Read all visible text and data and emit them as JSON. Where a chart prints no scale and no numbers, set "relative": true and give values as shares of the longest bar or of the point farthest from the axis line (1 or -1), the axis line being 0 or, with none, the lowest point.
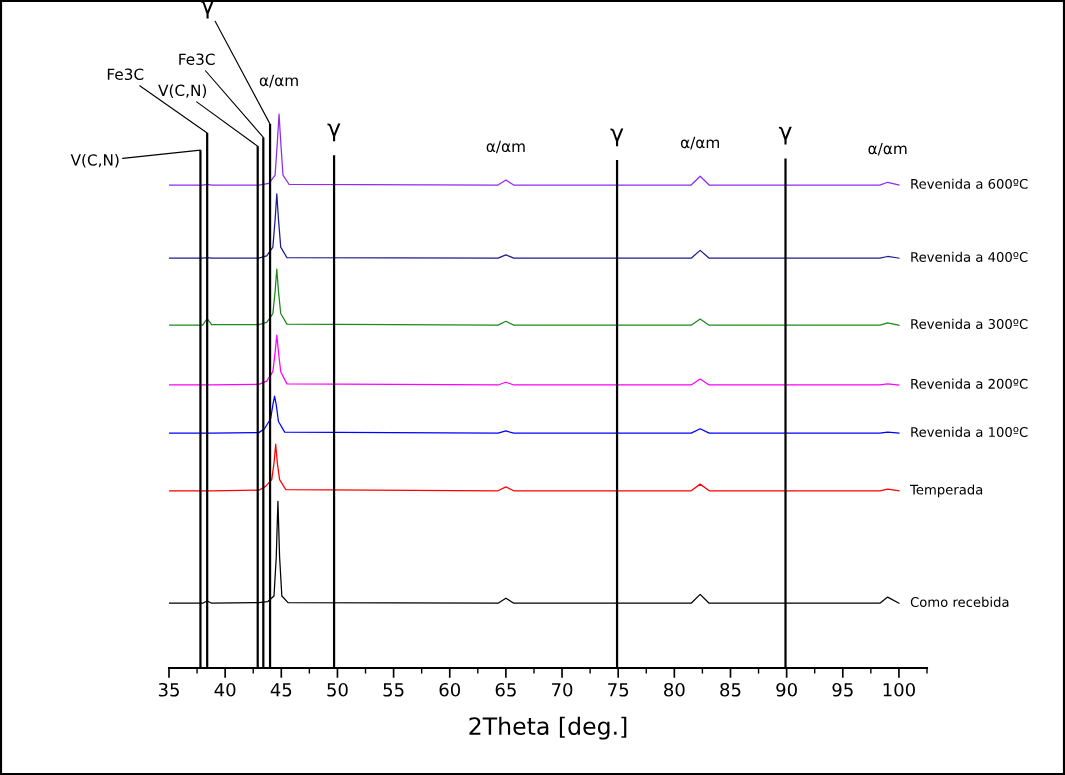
{
  "chart_data": {
    "type": "line",
    "relative": true,
    "xlabel": "2Theta [deg.]",
    "xlim": [
      35,
      102.5
    ],
    "xticks": [
      35,
      40,
      45,
      50,
      55,
      60,
      65,
      70,
      75,
      80,
      85,
      90,
      95,
      100
    ],
    "grid": false,
    "legend": false,
    "marker": "none",
    "line_style": "solid",
    "series": [
      {
        "name": "Como recebida",
        "color": "#000000",
        "x": [
          35,
          38.0,
          38.4,
          38.8,
          43.0,
          43.8,
          44.35,
          44.55,
          44.7,
          44.85,
          45.05,
          45.6,
          64.3,
          65.0,
          65.7,
          81.5,
          82.3,
          83.1,
          98.3,
          99.0,
          100
        ],
        "values": [
          0.117,
          0.117,
          0.121,
          0.117,
          0.118,
          0.12,
          0.13,
          0.2,
          0.301,
          0.2,
          0.13,
          0.118,
          0.117,
          0.126,
          0.117,
          0.117,
          0.133,
          0.117,
          0.117,
          0.128,
          0.117
        ]
      },
      {
        "name": "Temperada",
        "color": "#ff0000",
        "x": [
          35,
          38.0,
          38.4,
          38.8,
          43.0,
          43.6,
          44.15,
          44.35,
          44.5,
          44.65,
          44.85,
          45.4,
          64.3,
          65.0,
          65.7,
          81.5,
          82.3,
          83.1,
          98.3,
          99.0,
          100
        ],
        "values": [
          0.32,
          0.32,
          0.32,
          0.32,
          0.321,
          0.328,
          0.34,
          0.37,
          0.404,
          0.37,
          0.34,
          0.322,
          0.32,
          0.327,
          0.32,
          0.32,
          0.332,
          0.32,
          0.32,
          0.323,
          0.32
        ]
      },
      {
        "name": "Revenida a 100ºC",
        "color": "#0000ff",
        "x": [
          35,
          38.0,
          38.4,
          38.8,
          43.0,
          43.5,
          44.05,
          44.25,
          44.4,
          44.55,
          44.75,
          45.3,
          64.3,
          65.0,
          65.7,
          81.5,
          82.3,
          83.1,
          98.3,
          99.0,
          100
        ],
        "values": [
          0.424,
          0.424,
          0.424,
          0.424,
          0.425,
          0.432,
          0.45,
          0.475,
          0.491,
          0.475,
          0.445,
          0.426,
          0.424,
          0.428,
          0.424,
          0.424,
          0.432,
          0.424,
          0.424,
          0.426,
          0.424
        ]
      },
      {
        "name": "Revenida a 200ºC",
        "color": "#ff00ff",
        "x": [
          35,
          38.0,
          38.4,
          38.8,
          43.0,
          43.7,
          44.25,
          44.45,
          44.6,
          44.75,
          44.95,
          45.5,
          64.3,
          65.0,
          65.7,
          81.5,
          82.3,
          83.1,
          98.3,
          99.0,
          100
        ],
        "values": [
          0.511,
          0.511,
          0.511,
          0.511,
          0.512,
          0.518,
          0.535,
          0.57,
          0.601,
          0.57,
          0.535,
          0.513,
          0.511,
          0.516,
          0.511,
          0.511,
          0.522,
          0.511,
          0.511,
          0.513,
          0.511
        ]
      },
      {
        "name": "Revenida a 300ºC",
        "color": "#1a8a1a",
        "x": [
          35,
          38.0,
          38.4,
          38.8,
          43.0,
          43.7,
          44.25,
          44.45,
          44.6,
          44.75,
          44.95,
          45.5,
          64.3,
          65.0,
          65.7,
          81.5,
          82.3,
          83.1,
          98.3,
          99.0,
          100
        ],
        "values": [
          0.619,
          0.619,
          0.631,
          0.62,
          0.62,
          0.624,
          0.64,
          0.68,
          0.72,
          0.68,
          0.64,
          0.621,
          0.619,
          0.626,
          0.619,
          0.619,
          0.63,
          0.619,
          0.619,
          0.623,
          0.619
        ]
      },
      {
        "name": "Revenida a 400ºC",
        "color": "#1c1c8c",
        "x": [
          35,
          38.0,
          38.4,
          38.8,
          43.0,
          43.7,
          44.25,
          44.45,
          44.6,
          44.75,
          44.95,
          45.5,
          64.3,
          65.0,
          65.7,
          81.5,
          82.3,
          83.1,
          98.3,
          99.0,
          100
        ],
        "values": [
          0.74,
          0.74,
          0.741,
          0.74,
          0.74,
          0.744,
          0.76,
          0.81,
          0.856,
          0.81,
          0.76,
          0.741,
          0.74,
          0.746,
          0.74,
          0.74,
          0.754,
          0.74,
          0.74,
          0.743,
          0.74
        ]
      },
      {
        "name": "Revenida a 600ºC",
        "color": "#8f2cf0",
        "x": [
          35,
          38.0,
          38.4,
          38.8,
          43.0,
          43.9,
          44.45,
          44.65,
          44.8,
          44.95,
          45.15,
          45.7,
          64.3,
          65.0,
          65.7,
          81.5,
          82.3,
          83.1,
          98.3,
          99.0,
          100
        ],
        "values": [
          0.872,
          0.872,
          0.873,
          0.872,
          0.872,
          0.875,
          0.89,
          0.95,
          1.0,
          0.95,
          0.89,
          0.873,
          0.872,
          0.881,
          0.872,
          0.872,
          0.888,
          0.872,
          0.872,
          0.877,
          0.872
        ]
      }
    ],
    "ref_lines": [
      {
        "axis": "x",
        "value": 37.8,
        "label": "V(C,N)"
      },
      {
        "axis": "x",
        "value": 38.4,
        "label": "Fe3C"
      },
      {
        "axis": "x",
        "value": 42.9,
        "label": "V(C,N)"
      },
      {
        "axis": "x",
        "value": 43.4,
        "label": "Fe3C"
      },
      {
        "axis": "x",
        "value": 44.0,
        "label": "γ"
      },
      {
        "axis": "x",
        "value": 49.7,
        "label": "γ"
      },
      {
        "axis": "x",
        "value": 74.9,
        "label": "γ"
      },
      {
        "axis": "x",
        "value": 89.9,
        "label": "γ"
      }
    ],
    "annotations": [
      {
        "text": "α/αm",
        "x": 44.8,
        "y": 1.0
      },
      {
        "text": "α/αm",
        "x": 65.0,
        "y": 0.881
      },
      {
        "text": "α/αm",
        "x": 82.3,
        "y": 0.888
      },
      {
        "text": "α/αm",
        "x": 99.0,
        "y": 0.877
      }
    ]
  }
}
